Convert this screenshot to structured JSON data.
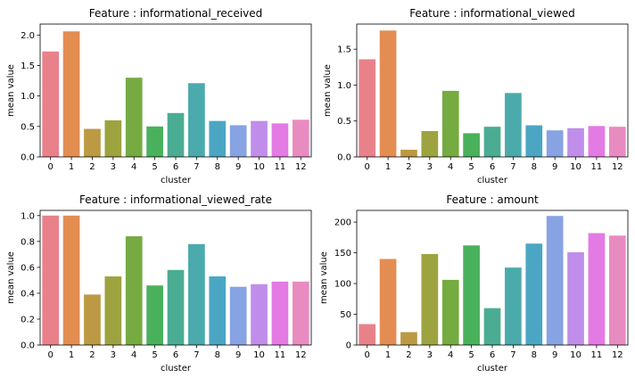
{
  "chart_data": [
    {
      "type": "bar",
      "title": "Feature : informational_received",
      "xlabel": "cluster",
      "ylabel": "mean value",
      "categories": [
        "0",
        "1",
        "2",
        "3",
        "4",
        "5",
        "6",
        "7",
        "8",
        "9",
        "10",
        "11",
        "12"
      ],
      "values": [
        1.73,
        2.06,
        0.46,
        0.6,
        1.3,
        0.5,
        0.72,
        1.21,
        0.59,
        0.52,
        0.59,
        0.55,
        0.61
      ],
      "ylim": [
        0,
        2.18
      ],
      "yticks": [
        0.0,
        0.5,
        1.0,
        1.5,
        2.0
      ],
      "ytick_labels": [
        "0.0",
        "0.5",
        "1.0",
        "1.5",
        "2.0"
      ],
      "grid": false,
      "legend": "none"
    },
    {
      "type": "bar",
      "title": "Feature : informational_viewed",
      "xlabel": "cluster",
      "ylabel": "mean value",
      "categories": [
        "0",
        "1",
        "2",
        "3",
        "4",
        "5",
        "6",
        "7",
        "8",
        "9",
        "10",
        "11",
        "12"
      ],
      "values": [
        1.36,
        1.76,
        0.1,
        0.36,
        0.92,
        0.33,
        0.42,
        0.89,
        0.44,
        0.37,
        0.4,
        0.43,
        0.42
      ],
      "ylim": [
        0,
        1.85
      ],
      "yticks": [
        0.0,
        0.5,
        1.0,
        1.5
      ],
      "ytick_labels": [
        "0.0",
        "0.5",
        "1.0",
        "1.5"
      ],
      "grid": false,
      "legend": "none"
    },
    {
      "type": "bar",
      "title": "Feature : informational_viewed_rate",
      "xlabel": "cluster",
      "ylabel": "mean value",
      "categories": [
        "0",
        "1",
        "2",
        "3",
        "4",
        "5",
        "6",
        "7",
        "8",
        "9",
        "10",
        "11",
        "12"
      ],
      "values": [
        1.0,
        1.0,
        0.39,
        0.53,
        0.84,
        0.46,
        0.58,
        0.78,
        0.53,
        0.45,
        0.47,
        0.49,
        0.49
      ],
      "ylim": [
        0,
        1.04
      ],
      "yticks": [
        0.0,
        0.2,
        0.4,
        0.6,
        0.8,
        1.0
      ],
      "ytick_labels": [
        "0.0",
        "0.2",
        "0.4",
        "0.6",
        "0.8",
        "1.0"
      ],
      "grid": false,
      "legend": "none"
    },
    {
      "type": "bar",
      "title": "Feature : amount",
      "xlabel": "cluster",
      "ylabel": "mean value",
      "categories": [
        "0",
        "1",
        "2",
        "3",
        "4",
        "5",
        "6",
        "7",
        "8",
        "9",
        "10",
        "11",
        "12"
      ],
      "values": [
        34,
        140,
        21,
        148,
        106,
        162,
        60,
        126,
        165,
        210,
        151,
        182,
        178
      ],
      "ylim": [
        0,
        219
      ],
      "yticks": [
        0,
        50,
        100,
        150,
        200
      ],
      "ytick_labels": [
        "0",
        "50",
        "100",
        "150",
        "200"
      ],
      "grid": false,
      "legend": "none"
    }
  ],
  "palette": [
    "#e9818b",
    "#e38d53",
    "#bb9a43",
    "#9da33f",
    "#76ab41",
    "#49b15b",
    "#4aad93",
    "#4baaac",
    "#4ba6c4",
    "#88a3e3",
    "#c08eea",
    "#e47ae4",
    "#e88bc1"
  ]
}
